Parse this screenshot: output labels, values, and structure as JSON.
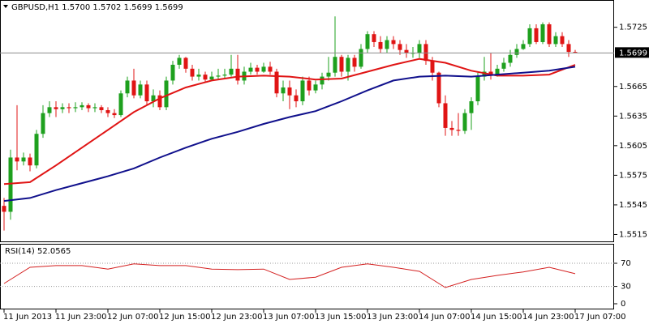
{
  "chart_data": [
    {
      "type": "candlestick",
      "title": "GBPUSD,H1  1.5700 1.5702 1.5699 1.5699",
      "open": [
        1.5544,
        1.5538,
        1.5593,
        1.5589,
        1.5593,
        1.5585,
        1.5617,
        1.5638,
        1.5644,
        1.5642,
        1.5644,
        1.5643,
        1.5644,
        1.5646,
        1.5643,
        1.5644,
        1.5641,
        1.5638,
        1.5636,
        1.5658,
        1.5671,
        1.5656,
        1.5667,
        1.565,
        1.5656,
        1.5644,
        1.5671,
        1.5687,
        1.5694,
        1.5683,
        1.5675,
        1.5677,
        1.5672,
        1.5675,
        1.5676,
        1.5677,
        1.5683,
        1.5671,
        1.568,
        1.5684,
        1.568,
        1.5685,
        1.568,
        1.5658,
        1.5664,
        1.5656,
        1.565,
        1.5671,
        1.5661,
        1.5667,
        1.5675,
        1.5679,
        1.5695,
        1.568,
        1.5694,
        1.5685,
        1.5703,
        1.5718,
        1.571,
        1.5703,
        1.5712,
        1.5708,
        1.5702,
        1.5699,
        1.5699,
        1.5708,
        1.5691,
        1.5679,
        1.5648,
        1.5623,
        1.5621,
        1.562,
        1.5638,
        1.565,
        1.5675,
        1.568,
        1.5677,
        1.5683,
        1.5689,
        1.5697,
        1.5703,
        1.5708,
        1.5724,
        1.571,
        1.5728,
        1.5708,
        1.5716,
        1.5708,
        1.57
      ],
      "high": [
        1.5552,
        1.5601,
        1.5646,
        1.5598,
        1.5597,
        1.5621,
        1.5646,
        1.565,
        1.565,
        1.5648,
        1.5648,
        1.5649,
        1.5649,
        1.5648,
        1.5648,
        1.5646,
        1.5644,
        1.5642,
        1.5661,
        1.5675,
        1.5683,
        1.5671,
        1.5671,
        1.5662,
        1.5661,
        1.5675,
        1.5691,
        1.5697,
        1.5695,
        1.5687,
        1.5683,
        1.568,
        1.568,
        1.5683,
        1.5683,
        1.5697,
        1.5697,
        1.5685,
        1.5689,
        1.5687,
        1.5689,
        1.569,
        1.5683,
        1.5671,
        1.5671,
        1.5662,
        1.5675,
        1.5675,
        1.5671,
        1.5679,
        1.5695,
        1.5736,
        1.5697,
        1.5697,
        1.5697,
        1.5708,
        1.5721,
        1.5721,
        1.5716,
        1.5716,
        1.5716,
        1.5712,
        1.5708,
        1.5705,
        1.5712,
        1.5712,
        1.5695,
        1.568,
        1.5656,
        1.563,
        1.5638,
        1.5642,
        1.5654,
        1.5679,
        1.5695,
        1.5699,
        1.5687,
        1.5694,
        1.5702,
        1.5708,
        1.5712,
        1.5728,
        1.5728,
        1.573,
        1.573,
        1.572,
        1.572,
        1.5712,
        1.5702
      ],
      "low": [
        1.5519,
        1.553,
        1.558,
        1.5585,
        1.5579,
        1.5582,
        1.5613,
        1.5634,
        1.5634,
        1.5638,
        1.5638,
        1.5639,
        1.5641,
        1.5639,
        1.5639,
        1.5638,
        1.5634,
        1.5633,
        1.5634,
        1.5654,
        1.5653,
        1.5653,
        1.5646,
        1.5644,
        1.5641,
        1.5641,
        1.5667,
        1.5683,
        1.5679,
        1.5671,
        1.5671,
        1.5669,
        1.5671,
        1.5672,
        1.5673,
        1.5675,
        1.5667,
        1.5667,
        1.5677,
        1.5677,
        1.5679,
        1.5677,
        1.5654,
        1.565,
        1.5642,
        1.5644,
        1.5646,
        1.5656,
        1.5658,
        1.5662,
        1.5671,
        1.5675,
        1.5675,
        1.5671,
        1.568,
        1.5683,
        1.5699,
        1.5705,
        1.5699,
        1.5699,
        1.5703,
        1.5697,
        1.5694,
        1.5694,
        1.5694,
        1.5687,
        1.5671,
        1.5644,
        1.5615,
        1.5615,
        1.5615,
        1.5617,
        1.5621,
        1.5646,
        1.5671,
        1.5672,
        1.5675,
        1.568,
        1.5685,
        1.5694,
        1.5702,
        1.5705,
        1.5708,
        1.5708,
        1.5705,
        1.5705,
        1.5705,
        1.5695,
        1.5699
      ],
      "close": [
        1.5538,
        1.5593,
        1.5589,
        1.5593,
        1.5585,
        1.5617,
        1.5638,
        1.5644,
        1.5642,
        1.5644,
        1.5643,
        1.5644,
        1.5646,
        1.5643,
        1.5644,
        1.5641,
        1.5638,
        1.5636,
        1.5658,
        1.5671,
        1.5656,
        1.5667,
        1.565,
        1.5656,
        1.5644,
        1.5671,
        1.5687,
        1.5694,
        1.5683,
        1.5675,
        1.5677,
        1.5672,
        1.5675,
        1.5676,
        1.5677,
        1.5683,
        1.5671,
        1.568,
        1.5684,
        1.568,
        1.5685,
        1.568,
        1.5658,
        1.5664,
        1.5656,
        1.565,
        1.5671,
        1.5661,
        1.5667,
        1.5675,
        1.5679,
        1.5695,
        1.568,
        1.5694,
        1.5685,
        1.5703,
        1.5718,
        1.571,
        1.5703,
        1.5712,
        1.5708,
        1.5702,
        1.5699,
        1.5699,
        1.5708,
        1.5691,
        1.5679,
        1.5648,
        1.5623,
        1.5621,
        1.562,
        1.5638,
        1.565,
        1.5675,
        1.568,
        1.5677,
        1.5683,
        1.5689,
        1.5697,
        1.5703,
        1.5708,
        1.5724,
        1.571,
        1.5728,
        1.5708,
        1.5716,
        1.5708,
        1.57,
        1.5699
      ],
      "up_color": "#1ea01e",
      "down_color": "#e01414",
      "xlim": [
        -0.625,
        94
      ],
      "xticks": [
        {
          "value": 0,
          "label": "11 Jun 2013"
        },
        {
          "value": 8,
          "label": "11 Jun 23:00"
        },
        {
          "value": 16,
          "label": "12 Jun 07:00"
        },
        {
          "value": 24,
          "label": "12 Jun 15:00"
        },
        {
          "value": 32,
          "label": "12 Jun 23:00"
        },
        {
          "value": 40,
          "label": "13 Jun 07:00"
        },
        {
          "value": 48,
          "label": "13 Jun 15:00"
        },
        {
          "value": 56,
          "label": "13 Jun 23:00"
        },
        {
          "value": 64,
          "label": "14 Jun 07:00"
        },
        {
          "value": 72,
          "label": "14 Jun 15:00"
        },
        {
          "value": 80,
          "label": "14 Jun 23:00"
        },
        {
          "value": 88,
          "label": "17 Jun 07:00"
        }
      ],
      "ylim": [
        1.5508,
        1.5751
      ],
      "yticks": [
        1.5725,
        1.5665,
        1.5635,
        1.5605,
        1.5575,
        1.5545,
        1.5515
      ],
      "last_price": 1.5699,
      "overlays": [
        {
          "color": "#e01414",
          "x": [
            0,
            4,
            8,
            12,
            16,
            20,
            24,
            28,
            32,
            36,
            40,
            44,
            48,
            52,
            56,
            60,
            64,
            68,
            72,
            76,
            80,
            84,
            88
          ],
          "values": [
            1.5566,
            1.5568,
            1.5585,
            1.5603,
            1.5621,
            1.5639,
            1.5653,
            1.5664,
            1.5671,
            1.5675,
            1.5676,
            1.5675,
            1.5672,
            1.5673,
            1.568,
            1.5687,
            1.5693,
            1.5689,
            1.5681,
            1.5676,
            1.5676,
            1.5677,
            1.5687
          ]
        },
        {
          "color": "#10108c",
          "x": [
            0,
            4,
            8,
            12,
            16,
            20,
            24,
            28,
            32,
            36,
            40,
            44,
            48,
            52,
            56,
            60,
            64,
            68,
            72,
            76,
            80,
            84,
            88
          ],
          "values": [
            1.5549,
            1.5552,
            1.556,
            1.5567,
            1.5574,
            1.5582,
            1.5593,
            1.5603,
            1.5612,
            1.5619,
            1.5627,
            1.5634,
            1.564,
            1.565,
            1.5661,
            1.5671,
            1.5675,
            1.5676,
            1.5675,
            1.5677,
            1.5679,
            1.5681,
            1.5685
          ]
        }
      ]
    },
    {
      "type": "line",
      "title": "RSI(14) 52.0565",
      "color": "#d42020",
      "x": [
        0,
        4,
        8,
        12,
        16,
        20,
        24,
        28,
        32,
        36,
        40,
        44,
        48,
        52,
        56,
        60,
        64,
        68,
        72,
        76,
        80,
        84,
        88
      ],
      "values": [
        35,
        63,
        66,
        66,
        60,
        69,
        66,
        66,
        60,
        59,
        60,
        42,
        46,
        63,
        69,
        63,
        56,
        28,
        42,
        49,
        55,
        63,
        52
      ],
      "xlim": [
        -0.625,
        94
      ],
      "ylim": [
        0,
        100
      ],
      "yticks": [
        70,
        30,
        0
      ]
    }
  ]
}
